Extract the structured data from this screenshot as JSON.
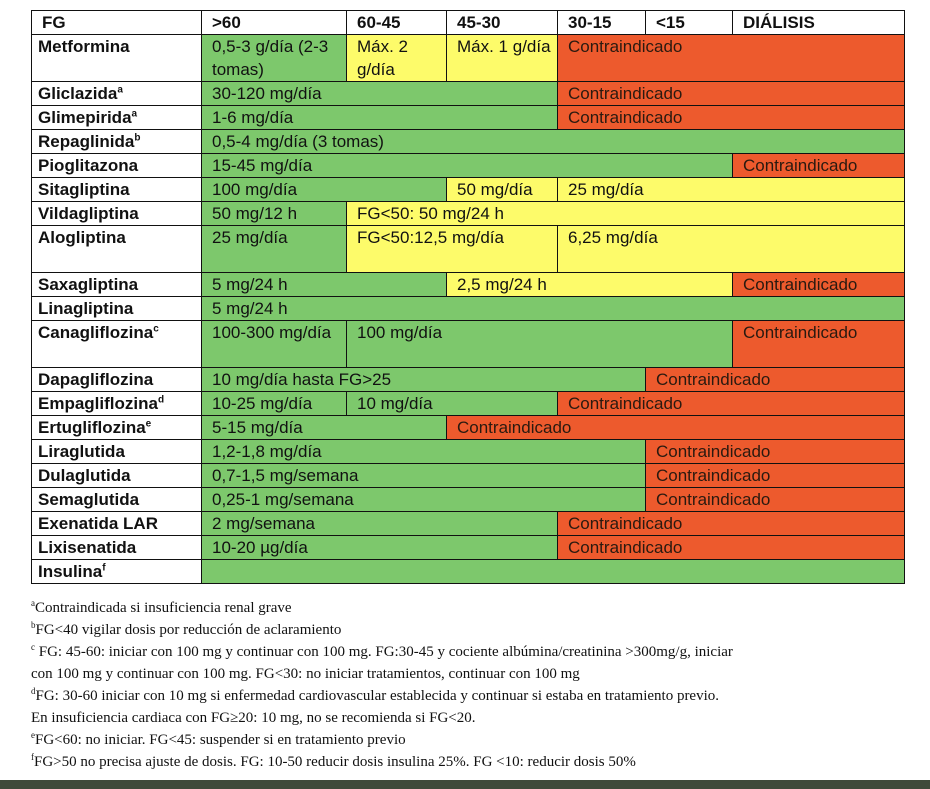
{
  "header": [
    "FG",
    ">60",
    "60-45",
    "45-30",
    "30-15",
    "<15",
    "DIÁLISIS"
  ],
  "rows": [
    {
      "drug": "Metformina",
      "sup": "",
      "cells": [
        {
          "text": "0,5-3 g/día (2-3 tomas)",
          "span": 1,
          "color": "green"
        },
        {
          "text": "Máx. 2 g/día",
          "span": 1,
          "color": "yellow"
        },
        {
          "text": "Máx. 1 g/día",
          "span": 1,
          "color": "yellow"
        },
        {
          "text": "Contraindicado",
          "span": 3,
          "color": "red"
        }
      ]
    },
    {
      "drug": "Gliclazida",
      "sup": "a",
      "cells": [
        {
          "text": "30-120 mg/día",
          "span": 3,
          "color": "green"
        },
        {
          "text": "Contraindicado",
          "span": 3,
          "color": "red"
        }
      ]
    },
    {
      "drug": "Glimepirida",
      "sup": "a",
      "cells": [
        {
          "text": "1-6 mg/día",
          "span": 3,
          "color": "green"
        },
        {
          "text": "Contraindicado",
          "span": 3,
          "color": "red"
        }
      ]
    },
    {
      "drug": "Repaglinida",
      "sup": "b",
      "cells": [
        {
          "text": "0,5-4 mg/día (3 tomas)",
          "span": 6,
          "color": "green"
        }
      ]
    },
    {
      "drug": "Pioglitazona",
      "sup": "",
      "cells": [
        {
          "text": "15-45 mg/día",
          "span": 5,
          "color": "green"
        },
        {
          "text": "Contraindicado",
          "span": 1,
          "color": "red"
        }
      ]
    },
    {
      "drug": "Sitagliptina",
      "sup": "",
      "cells": [
        {
          "text": "100 mg/día",
          "span": 2,
          "color": "green"
        },
        {
          "text": "50 mg/día",
          "span": 1,
          "color": "yellow"
        },
        {
          "text": "25 mg/día",
          "span": 3,
          "color": "yellow"
        }
      ]
    },
    {
      "drug": "Vildagliptina",
      "sup": "",
      "cells": [
        {
          "text": "50 mg/12 h",
          "span": 1,
          "color": "green"
        },
        {
          "text": "FG<50: 50 mg/24 h",
          "span": 5,
          "color": "yellow"
        }
      ]
    },
    {
      "drug": "Alogliptina",
      "sup": "",
      "cells": [
        {
          "text": "25 mg/día",
          "span": 1,
          "color": "green"
        },
        {
          "text": "FG<50:12,5 mg/día",
          "span": 2,
          "color": "yellow"
        },
        {
          "text": "6,25 mg/día",
          "span": 3,
          "color": "yellow"
        }
      ]
    },
    {
      "drug": "Saxagliptina",
      "sup": "",
      "cells": [
        {
          "text": "5 mg/24 h",
          "span": 2,
          "color": "green"
        },
        {
          "text": "2,5 mg/24 h",
          "span": 3,
          "color": "yellow"
        },
        {
          "text": "Contraindicado",
          "span": 1,
          "color": "red"
        }
      ]
    },
    {
      "drug": "Linagliptina",
      "sup": "",
      "cells": [
        {
          "text": "5 mg/24 h",
          "span": 6,
          "color": "green"
        }
      ]
    },
    {
      "drug": "Canagliflozina",
      "sup": "c",
      "cells": [
        {
          "text": "100-300 mg/día",
          "span": 1,
          "color": "green"
        },
        {
          "text": "100 mg/día",
          "span": 4,
          "color": "green"
        },
        {
          "text": "Contraindicado",
          "span": 1,
          "color": "red"
        }
      ]
    },
    {
      "drug": "Dapagliflozina",
      "sup": "",
      "cells": [
        {
          "text": "10 mg/día hasta FG>25",
          "span": 4,
          "color": "green"
        },
        {
          "text": "Contraindicado",
          "span": 2,
          "color": "red"
        }
      ]
    },
    {
      "drug": "Empagliflozina",
      "sup": "d",
      "cells": [
        {
          "text": "10-25 mg/día",
          "span": 1,
          "color": "green"
        },
        {
          "text": "10 mg/día",
          "span": 2,
          "color": "green"
        },
        {
          "text": "Contraindicado",
          "span": 3,
          "color": "red"
        }
      ]
    },
    {
      "drug": "Ertugliflozina",
      "sup": "e",
      "cells": [
        {
          "text": "5-15 mg/día",
          "span": 2,
          "color": "green"
        },
        {
          "text": "Contraindicado",
          "span": 4,
          "color": "red"
        }
      ]
    },
    {
      "drug": "Liraglutida",
      "sup": "",
      "cells": [
        {
          "text": "1,2-1,8 mg/día",
          "span": 4,
          "color": "green"
        },
        {
          "text": "Contraindicado",
          "span": 2,
          "color": "red"
        }
      ]
    },
    {
      "drug": "Dulaglutida",
      "sup": "",
      "cells": [
        {
          "text": "0,7-1,5 mg/semana",
          "span": 4,
          "color": "green"
        },
        {
          "text": "Contraindicado",
          "span": 2,
          "color": "red"
        }
      ]
    },
    {
      "drug": "Semaglutida",
      "sup": "",
      "cells": [
        {
          "text": "0,25-1 mg/semana",
          "span": 4,
          "color": "green"
        },
        {
          "text": "Contraindicado",
          "span": 2,
          "color": "red"
        }
      ]
    },
    {
      "drug": "Exenatida LAR",
      "sup": "",
      "cells": [
        {
          "text": "2 mg/semana",
          "span": 3,
          "color": "green"
        },
        {
          "text": "Contraindicado",
          "span": 3,
          "color": "red"
        }
      ]
    },
    {
      "drug": "Lixisenatida",
      "sup": "",
      "cells": [
        {
          "text": "10-20 µg/día",
          "span": 3,
          "color": "green"
        },
        {
          "text": "Contraindicado",
          "span": 3,
          "color": "red"
        }
      ]
    },
    {
      "drug": "Insulina",
      "sup": "f",
      "cells": [
        {
          "text": "",
          "span": 6,
          "color": "green"
        }
      ]
    }
  ],
  "notes": [
    {
      "sup": "a",
      "text": "Contraindicada si insuficiencia renal grave"
    },
    {
      "sup": "b",
      "text": "FG<40 vigilar dosis por reducción de aclaramiento"
    },
    {
      "sup": "c",
      "text": " FG: 45-60: iniciar con 100 mg y continuar con 100 mg. FG:30-45 y cociente albúmina/creatinina >300mg/g, iniciar"
    },
    {
      "sup": "",
      "text": "con 100 mg y continuar con 100 mg. FG<30: no iniciar tratamientos, continuar con 100 mg"
    },
    {
      "sup": "d",
      "text": "FG: 30-60 iniciar con 10 mg si enfermedad cardiovascular establecida y continuar si estaba en tratamiento previo."
    },
    {
      "sup": "",
      "text": "En insuficiencia cardiaca con FG≥20: 10 mg, no se recomienda si FG<20."
    },
    {
      "sup": "e",
      "text": "FG<60: no iniciar. FG<45: suspender si en tratamiento previo"
    },
    {
      "sup": "f",
      "text": "FG>50 no precisa ajuste de dosis. FG: 10-50 reducir dosis insulina 25%. FG <10: reducir dosis 50%"
    }
  ]
}
